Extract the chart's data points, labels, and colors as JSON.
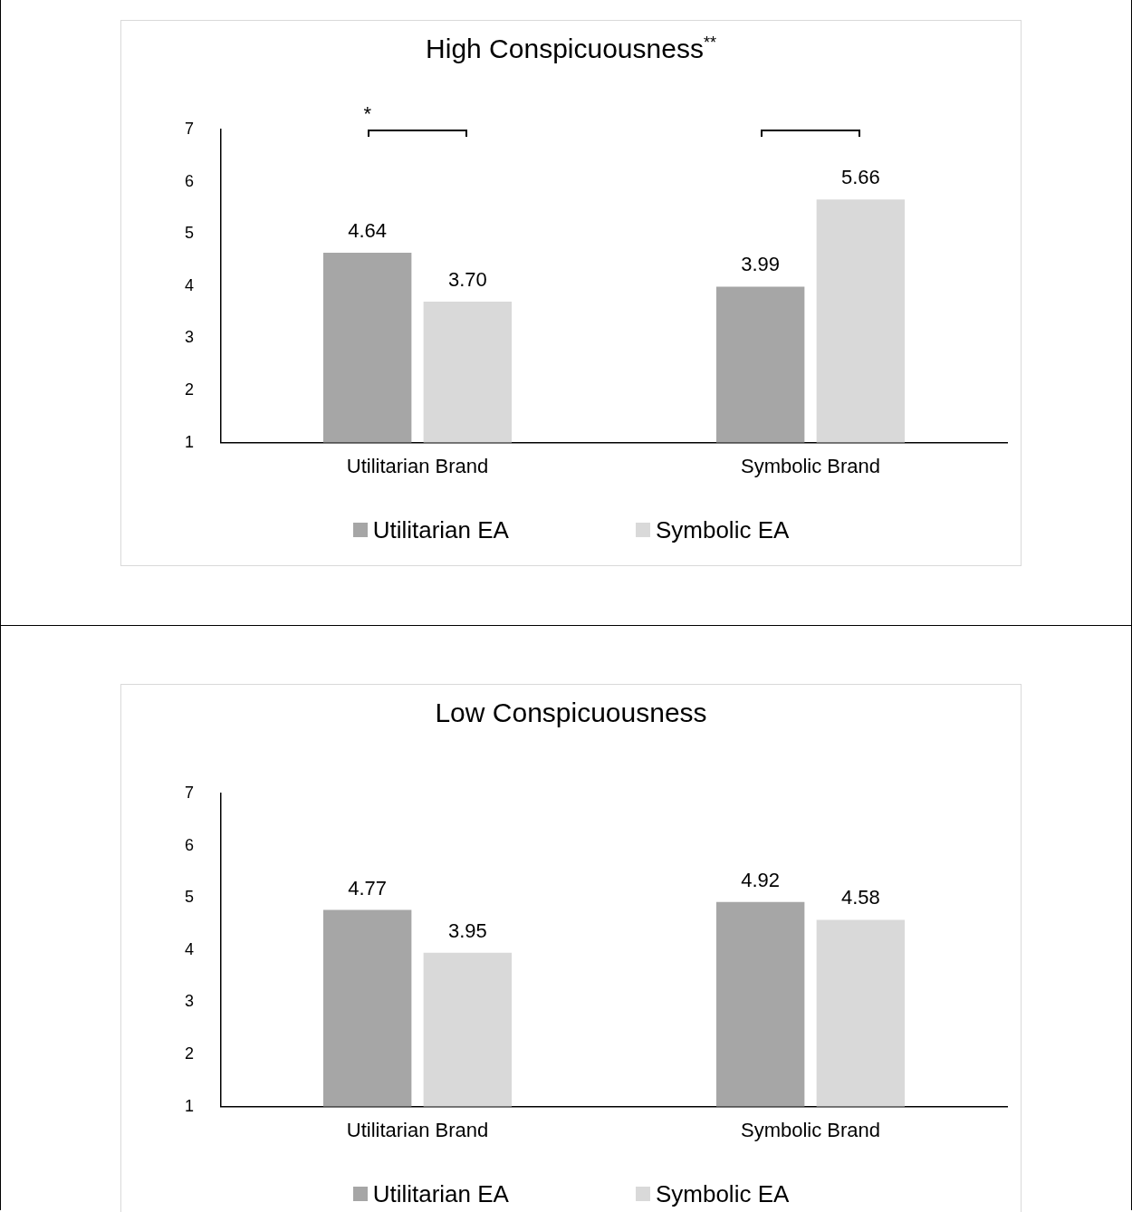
{
  "chart_data": [
    {
      "type": "bar",
      "title": "High Conspicuousness$^{**}$",
      "categories": [
        "Utilitarian Brand",
        "Symbolic Brand"
      ],
      "series": [
        {
          "name": "Utilitarian EA",
          "color": "#a6a6a6",
          "values": [
            4.64,
            3.99
          ],
          "value_labels": [
            "4.64",
            "3.99"
          ]
        },
        {
          "name": "Symbolic EA",
          "color": "#d9d9d9",
          "values": [
            3.7,
            5.66
          ],
          "value_labels": [
            "3.70",
            "5.66"
          ]
        }
      ],
      "ylim": [
        1,
        7
      ],
      "yticks": [
        1,
        2,
        3,
        4,
        5,
        6,
        7
      ],
      "grid": false,
      "legend": "bottom",
      "annotations": [
        "*"
      ]
    },
    {
      "type": "bar",
      "title": "Low Conspicuousness",
      "categories": [
        "Utilitarian Brand",
        "Symbolic Brand"
      ],
      "series": [
        {
          "name": "Utilitarian EA",
          "color": "#a6a6a6",
          "values": [
            4.77,
            4.92
          ],
          "value_labels": [
            "4.77",
            "4.92"
          ]
        },
        {
          "name": "Symbolic EA",
          "color": "#d9d9d9",
          "values": [
            3.95,
            4.58
          ],
          "value_labels": [
            "3.95",
            "4.58"
          ]
        }
      ],
      "ylim": [
        1,
        7
      ],
      "yticks": [
        1,
        2,
        3,
        4,
        5,
        6,
        7
      ],
      "grid": false,
      "legend": "bottom"
    }
  ]
}
